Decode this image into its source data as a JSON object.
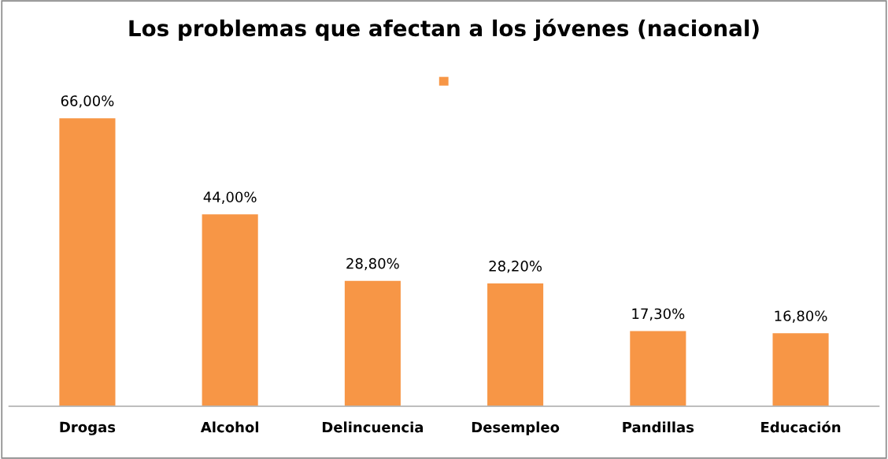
{
  "chart_data": {
    "type": "bar",
    "title": "Los problemas que afectan a los jóvenes (nacional)",
    "categories": [
      "Drogas",
      "Alcohol",
      "Delincuencia",
      "Desempleo",
      "Pandillas",
      "Educación"
    ],
    "series": [
      {
        "color": "#f79646",
        "values": [
          66.0,
          44.0,
          28.8,
          28.2,
          17.3,
          16.8
        ],
        "value_labels": [
          "66,00%",
          "44,00%",
          "28,80%",
          "28,20%",
          "17,30%",
          "16,80%"
        ]
      }
    ],
    "grid": false
  }
}
